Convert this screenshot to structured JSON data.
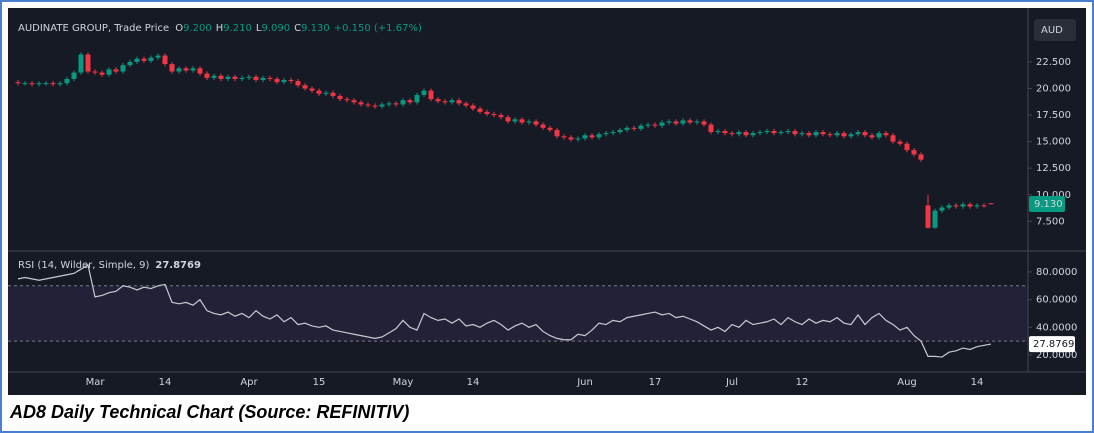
{
  "chart_data": [
    {
      "type": "candlestick",
      "title": "AUDINATE GROUP, Trade Price",
      "ohlc": [
        {
          "key": "O",
          "value": "9.200"
        },
        {
          "key": "H",
          "value": "9.210"
        },
        {
          "key": "L",
          "value": "9.090"
        },
        {
          "key": "C",
          "value": "9.130"
        }
      ],
      "change": "+0.150 (+1.67%)",
      "currency": "AUD",
      "last_label": "9.130",
      "up_color": "#089981",
      "down_color": "#f23645",
      "ylim": [
        4.8,
        27.2
      ],
      "yticks": [
        {
          "value": 7.5,
          "label": "7.500"
        },
        {
          "value": 10,
          "label": "10.000"
        },
        {
          "value": 12.5,
          "label": "12.500"
        },
        {
          "value": 15,
          "label": "15.000"
        },
        {
          "value": 17.5,
          "label": "17.500"
        },
        {
          "value": 20,
          "label": "20.000"
        },
        {
          "value": 22.5,
          "label": "22.500"
        }
      ],
      "open": [
        20.6,
        20.5,
        20.5,
        20.4,
        20.5,
        20.5,
        20.4,
        20.5,
        20.9,
        21.5,
        23.2,
        21.6,
        21.5,
        21.3,
        21.8,
        21.6,
        22.2,
        22.5,
        22.8,
        22.6,
        22.9,
        23.1,
        22.3,
        21.6,
        21.9,
        21.7,
        21.9,
        21.4,
        21.0,
        21.2,
        20.9,
        21.1,
        20.9,
        21.0,
        21.1,
        20.8,
        21.0,
        20.9,
        20.6,
        20.8,
        20.7,
        20.3,
        20.0,
        19.8,
        19.5,
        19.6,
        19.3,
        19.0,
        18.9,
        18.7,
        18.5,
        18.4,
        18.3,
        18.5,
        18.6,
        18.5,
        18.9,
        18.7,
        19.4,
        19.8,
        19.0,
        18.8,
        18.7,
        18.9,
        18.6,
        18.4,
        18.1,
        17.8,
        17.6,
        17.5,
        17.3,
        16.9,
        17.1,
        16.8,
        16.9,
        16.6,
        16.3,
        16.1,
        15.5,
        15.4,
        15.2,
        15.3,
        15.6,
        15.4,
        15.7,
        15.8,
        15.9,
        16.1,
        16.3,
        16.2,
        16.5,
        16.6,
        16.5,
        16.8,
        16.9,
        16.7,
        17.0,
        16.8,
        16.9,
        16.6,
        15.9,
        16.0,
        15.8,
        15.7,
        15.9,
        15.6,
        15.8,
        15.9,
        16.0,
        15.8,
        15.9,
        16.0,
        15.7,
        15.8,
        15.6,
        15.9,
        15.7,
        15.6,
        15.8,
        15.5,
        15.7,
        15.9,
        15.6,
        15.4,
        15.8,
        15.6,
        15.0,
        14.8,
        14.2,
        13.8,
        9.0,
        6.9,
        8.5,
        8.8,
        9.0,
        8.9,
        9.1,
        8.9,
        9.0,
        9.2
      ],
      "high": [
        20.8,
        20.7,
        20.7,
        20.7,
        20.7,
        20.7,
        20.7,
        21.1,
        21.7,
        23.4,
        23.4,
        21.8,
        21.7,
        22.0,
        22.0,
        22.4,
        22.7,
        23.0,
        23.0,
        23.1,
        23.3,
        23.3,
        22.5,
        22.1,
        22.1,
        22.1,
        22.1,
        21.6,
        21.4,
        21.4,
        21.3,
        21.3,
        21.2,
        21.3,
        21.3,
        21.2,
        21.2,
        21.1,
        21.0,
        21.0,
        20.9,
        20.5,
        20.2,
        20.0,
        19.8,
        19.8,
        19.5,
        19.2,
        19.1,
        18.9,
        18.7,
        18.6,
        18.7,
        18.8,
        18.8,
        19.1,
        19.1,
        19.6,
        20.0,
        20.0,
        19.2,
        19.0,
        19.1,
        19.1,
        18.8,
        18.6,
        18.3,
        18.0,
        17.8,
        17.7,
        17.5,
        17.3,
        17.3,
        17.1,
        17.1,
        16.8,
        16.5,
        16.3,
        15.7,
        15.6,
        15.5,
        15.8,
        15.8,
        15.9,
        16.0,
        16.1,
        16.3,
        16.5,
        16.5,
        16.7,
        16.8,
        16.8,
        17.0,
        17.1,
        17.1,
        17.2,
        17.2,
        17.1,
        17.1,
        16.8,
        16.2,
        16.2,
        16.0,
        16.1,
        16.1,
        16.0,
        16.1,
        16.2,
        16.2,
        16.1,
        16.2,
        16.2,
        16.0,
        16.0,
        16.1,
        16.1,
        15.9,
        16.0,
        16.0,
        15.9,
        16.1,
        16.1,
        15.8,
        16.0,
        16.0,
        15.8,
        15.2,
        15.0,
        14.4,
        14.0,
        10.0,
        8.7,
        9.0,
        9.2,
        9.2,
        9.3,
        9.3,
        9.2,
        9.2,
        9.21
      ],
      "low": [
        20.3,
        20.3,
        20.2,
        20.2,
        20.3,
        20.2,
        20.2,
        20.3,
        20.7,
        21.3,
        21.4,
        21.3,
        21.1,
        21.1,
        21.4,
        21.4,
        22.0,
        22.3,
        22.4,
        22.4,
        22.7,
        22.1,
        21.4,
        21.4,
        21.5,
        21.5,
        21.2,
        20.8,
        20.8,
        20.7,
        20.7,
        20.7,
        20.7,
        20.8,
        20.6,
        20.6,
        20.7,
        20.4,
        20.4,
        20.5,
        20.1,
        19.8,
        19.6,
        19.3,
        19.3,
        19.1,
        18.8,
        18.7,
        18.5,
        18.3,
        18.2,
        18.1,
        18.1,
        18.3,
        18.3,
        18.3,
        18.5,
        18.5,
        19.2,
        18.8,
        18.6,
        18.5,
        18.5,
        18.4,
        18.2,
        17.9,
        17.6,
        17.4,
        17.3,
        17.1,
        16.7,
        16.7,
        16.6,
        16.6,
        16.4,
        16.1,
        15.9,
        15.3,
        15.2,
        15.0,
        15.0,
        15.1,
        15.2,
        15.2,
        15.5,
        15.6,
        15.7,
        15.9,
        16.0,
        16.0,
        16.3,
        16.3,
        16.3,
        16.6,
        16.5,
        16.5,
        16.6,
        16.6,
        16.4,
        15.7,
        15.7,
        15.6,
        15.5,
        15.5,
        15.4,
        15.4,
        15.6,
        15.7,
        15.6,
        15.6,
        15.7,
        15.5,
        15.5,
        15.4,
        15.4,
        15.5,
        15.4,
        15.4,
        15.3,
        15.3,
        15.5,
        15.4,
        15.2,
        15.2,
        15.4,
        14.8,
        14.6,
        14.0,
        13.6,
        13.1,
        6.8,
        6.8,
        8.3,
        8.6,
        8.7,
        8.7,
        8.7,
        8.7,
        8.8,
        9.09
      ],
      "close": [
        20.5,
        20.5,
        20.4,
        20.5,
        20.5,
        20.4,
        20.5,
        20.9,
        21.5,
        23.2,
        21.6,
        21.5,
        21.3,
        21.8,
        21.6,
        22.2,
        22.5,
        22.8,
        22.6,
        22.9,
        23.1,
        22.3,
        21.6,
        21.9,
        21.7,
        21.9,
        21.4,
        21.0,
        21.2,
        20.9,
        21.1,
        20.9,
        21.0,
        21.1,
        20.8,
        21.0,
        20.9,
        20.6,
        20.8,
        20.7,
        20.3,
        20.0,
        19.8,
        19.5,
        19.6,
        19.3,
        19.0,
        18.9,
        18.7,
        18.5,
        18.4,
        18.3,
        18.5,
        18.6,
        18.5,
        18.9,
        18.7,
        19.4,
        19.8,
        19.0,
        18.8,
        18.7,
        18.9,
        18.6,
        18.4,
        18.1,
        17.8,
        17.6,
        17.5,
        17.3,
        16.9,
        17.1,
        16.8,
        16.9,
        16.6,
        16.3,
        16.1,
        15.5,
        15.4,
        15.2,
        15.3,
        15.6,
        15.4,
        15.7,
        15.8,
        15.9,
        16.1,
        16.3,
        16.2,
        16.5,
        16.6,
        16.5,
        16.8,
        16.9,
        16.7,
        17.0,
        16.8,
        16.9,
        16.6,
        15.9,
        16.0,
        15.8,
        15.7,
        15.9,
        15.6,
        15.8,
        15.9,
        16.0,
        15.8,
        15.9,
        16.0,
        15.7,
        15.8,
        15.6,
        15.9,
        15.7,
        15.6,
        15.8,
        15.5,
        15.7,
        15.9,
        15.6,
        15.4,
        15.8,
        15.6,
        15.0,
        14.8,
        14.2,
        13.8,
        13.3,
        6.9,
        8.5,
        8.8,
        9.0,
        8.9,
        9.1,
        8.9,
        9.0,
        8.98,
        9.13
      ]
    },
    {
      "type": "line",
      "title": "RSI (14, Wilder, Simple, 9)",
      "value_label": "27.8769",
      "color": "#c8cad0",
      "band": [
        30,
        70
      ],
      "band_color": "#7e57c2",
      "ylim": [
        7.7,
        93.7
      ],
      "yticks": [
        {
          "value": 20,
          "label": "20.0000"
        },
        {
          "value": 40,
          "label": "40.0000"
        },
        {
          "value": 60,
          "label": "60.0000"
        },
        {
          "value": 80,
          "label": "80.0000"
        }
      ],
      "categories": [
        null,
        null,
        null,
        null,
        null,
        null,
        null,
        null,
        null,
        null,
        null,
        "Mar",
        null,
        null,
        null,
        null,
        null,
        null,
        null,
        null,
        null,
        "14",
        null,
        null,
        null,
        null,
        null,
        null,
        null,
        null,
        null,
        null,
        null,
        "Apr",
        null,
        null,
        null,
        null,
        null,
        null,
        null,
        null,
        null,
        "15",
        null,
        null,
        null,
        null,
        null,
        null,
        null,
        null,
        null,
        null,
        null,
        "May",
        null,
        null,
        null,
        null,
        null,
        null,
        null,
        null,
        null,
        "14",
        null,
        null,
        null,
        null,
        null,
        null,
        null,
        null,
        null,
        null,
        null,
        null,
        null,
        null,
        null,
        "Jun",
        null,
        null,
        null,
        null,
        null,
        null,
        null,
        null,
        null,
        "17",
        null,
        null,
        null,
        null,
        null,
        null,
        null,
        null,
        null,
        null,
        "Jul",
        null,
        null,
        null,
        null,
        null,
        null,
        null,
        null,
        null,
        "12",
        null,
        null,
        null,
        null,
        null,
        null,
        null,
        null,
        null,
        null,
        null,
        null,
        null,
        null,
        "Aug",
        null,
        null,
        null,
        null,
        null,
        null,
        null,
        null,
        null,
        "14",
        null,
        null
      ],
      "values": [
        75,
        76,
        75,
        74,
        75,
        76,
        77,
        78,
        79,
        82,
        85,
        62,
        63,
        65,
        66,
        70,
        69,
        67,
        69,
        68,
        70,
        71,
        58,
        57,
        58,
        56,
        60,
        52,
        50,
        49,
        51,
        48,
        50,
        47,
        52,
        48,
        46,
        49,
        44,
        47,
        42,
        43,
        41,
        40,
        41,
        38,
        37,
        36,
        35,
        34,
        33,
        32,
        33,
        36,
        39,
        45,
        40,
        38,
        50,
        47,
        45,
        46,
        43,
        46,
        41,
        42,
        40,
        43,
        45,
        42,
        38,
        41,
        43,
        40,
        42,
        37,
        34,
        32,
        31,
        31,
        35,
        34,
        38,
        43,
        42,
        45,
        44,
        47,
        48,
        49,
        50,
        51,
        49,
        50,
        47,
        48,
        46,
        44,
        41,
        38,
        40,
        37,
        42,
        40,
        45,
        42,
        43,
        44,
        46,
        42,
        47,
        44,
        42,
        46,
        43,
        45,
        44,
        47,
        43,
        42,
        49,
        42,
        47,
        50,
        45,
        42,
        38,
        40,
        34,
        30,
        19,
        19,
        18.5,
        22,
        23,
        25,
        24,
        26,
        27,
        27.8769
      ]
    }
  ],
  "caption": "AD8 Daily Technical Chart (Source: REFINITIV)"
}
